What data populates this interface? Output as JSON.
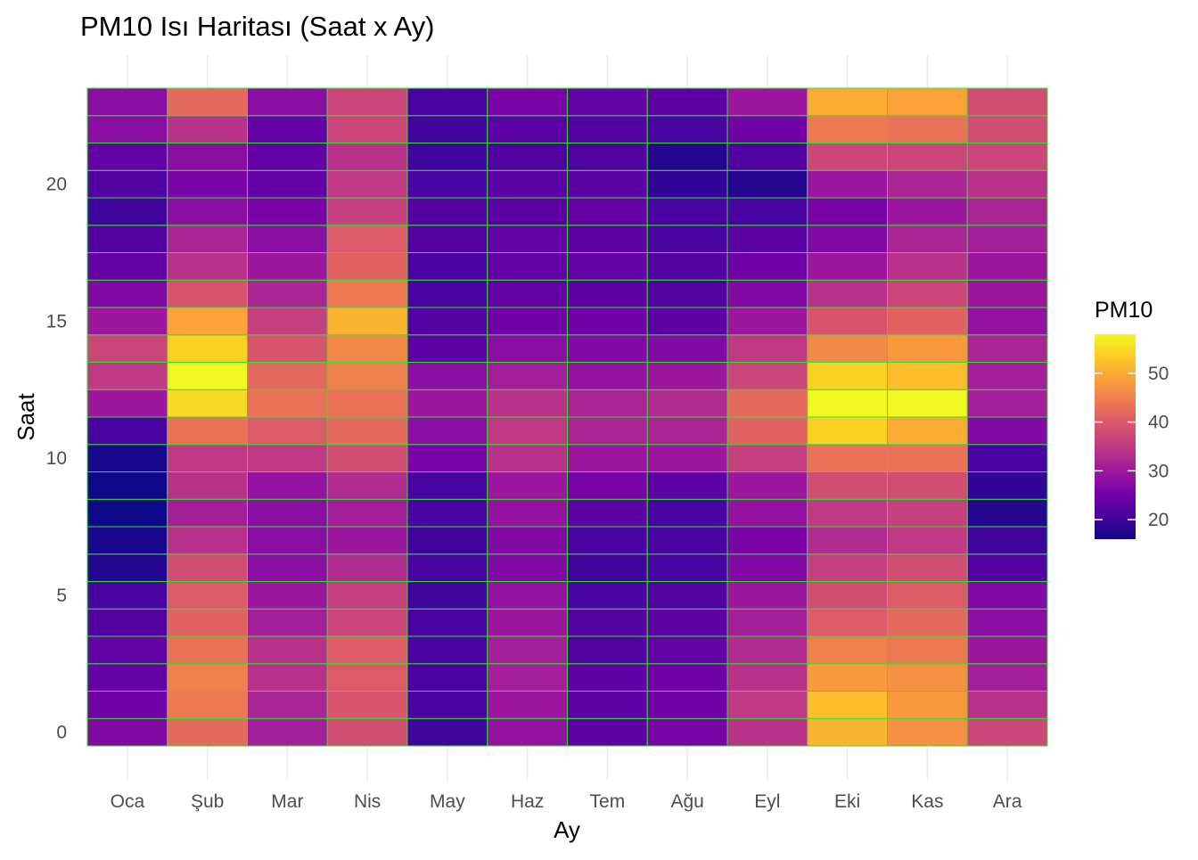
{
  "chart_data": {
    "type": "heatmap",
    "title": "PM10 Isı Haritası (Saat x Ay)",
    "xlabel": "Ay",
    "ylabel": "Saat",
    "x_categories": [
      "Oca",
      "Şub",
      "Mar",
      "Nis",
      "May",
      "Haz",
      "Tem",
      "Ağu",
      "Eyl",
      "Eki",
      "Kas",
      "Ara"
    ],
    "y_hours": [
      0,
      1,
      2,
      3,
      4,
      5,
      6,
      7,
      8,
      9,
      10,
      11,
      12,
      13,
      14,
      15,
      16,
      17,
      18,
      19,
      20,
      21,
      22,
      23
    ],
    "y_ticks": [
      0,
      5,
      10,
      15,
      20
    ],
    "values": [
      [
        27,
        42,
        31,
        38,
        20,
        29,
        23,
        26,
        34,
        51,
        47,
        37
      ],
      [
        25,
        44,
        32,
        39,
        21,
        30,
        23,
        25,
        35,
        52,
        48,
        34
      ],
      [
        24,
        45,
        34,
        40,
        21,
        31,
        23,
        25,
        34,
        48,
        47,
        31
      ],
      [
        24,
        43,
        34,
        40,
        21,
        31,
        22,
        24,
        33,
        45,
        44,
        30
      ],
      [
        22,
        41,
        31,
        37,
        21,
        30,
        22,
        23,
        31,
        40,
        42,
        28
      ],
      [
        21,
        40,
        30,
        36,
        20,
        29,
        21,
        22,
        30,
        38,
        40,
        27
      ],
      [
        18,
        38,
        28,
        33,
        21,
        27,
        20,
        21,
        27,
        36,
        38,
        22
      ],
      [
        17,
        34,
        28,
        30,
        20,
        27,
        21,
        21,
        26,
        33,
        35,
        20
      ],
      [
        16,
        31,
        28,
        31,
        21,
        29,
        23,
        21,
        29,
        35,
        36,
        18
      ],
      [
        15,
        34,
        29,
        33,
        21,
        30,
        26,
        23,
        30,
        38,
        38,
        19
      ],
      [
        17,
        35,
        35,
        38,
        26,
        34,
        30,
        30,
        36,
        43,
        43,
        21
      ],
      [
        21,
        43,
        40,
        42,
        28,
        35,
        32,
        32,
        41,
        54,
        50,
        27
      ],
      [
        30,
        55,
        43,
        43,
        30,
        34,
        32,
        33,
        42,
        58,
        58,
        31
      ],
      [
        35,
        59,
        42,
        45,
        28,
        31,
        29,
        30,
        37,
        54,
        52,
        31
      ],
      [
        37,
        54,
        39,
        46,
        23,
        28,
        27,
        27,
        35,
        46,
        48,
        32
      ],
      [
        30,
        49,
        36,
        51,
        22,
        25,
        25,
        23,
        30,
        39,
        41,
        29
      ],
      [
        27,
        39,
        32,
        44,
        21,
        24,
        23,
        22,
        27,
        34,
        37,
        30
      ],
      [
        24,
        34,
        30,
        41,
        21,
        24,
        24,
        22,
        25,
        30,
        34,
        30
      ],
      [
        22,
        32,
        28,
        40,
        22,
        24,
        23,
        21,
        23,
        27,
        32,
        31
      ],
      [
        20,
        28,
        26,
        36,
        22,
        23,
        24,
        21,
        21,
        26,
        30,
        32
      ],
      [
        22,
        26,
        24,
        35,
        21,
        23,
        23,
        19,
        18,
        30,
        32,
        34
      ],
      [
        24,
        28,
        24,
        34,
        20,
        22,
        22,
        18,
        22,
        37,
        37,
        37
      ],
      [
        28,
        34,
        24,
        37,
        20,
        23,
        22,
        21,
        25,
        44,
        43,
        38
      ],
      [
        28,
        42,
        28,
        37,
        21,
        26,
        24,
        23,
        30,
        50,
        49,
        38
      ]
    ],
    "color_scale": {
      "name": "plasma",
      "min": 16,
      "max": 58,
      "stops": [
        "#0D0887",
        "#46039F",
        "#7201A8",
        "#9C179E",
        "#BD3786",
        "#D8576B",
        "#ED7953",
        "#FB9F3A",
        "#FDCA26",
        "#F0F921"
      ]
    },
    "legend": {
      "title": "PM10",
      "ticks": [
        20,
        30,
        40,
        50
      ],
      "position": "right"
    },
    "cell_border_color": "#33E02E",
    "grid": true
  }
}
